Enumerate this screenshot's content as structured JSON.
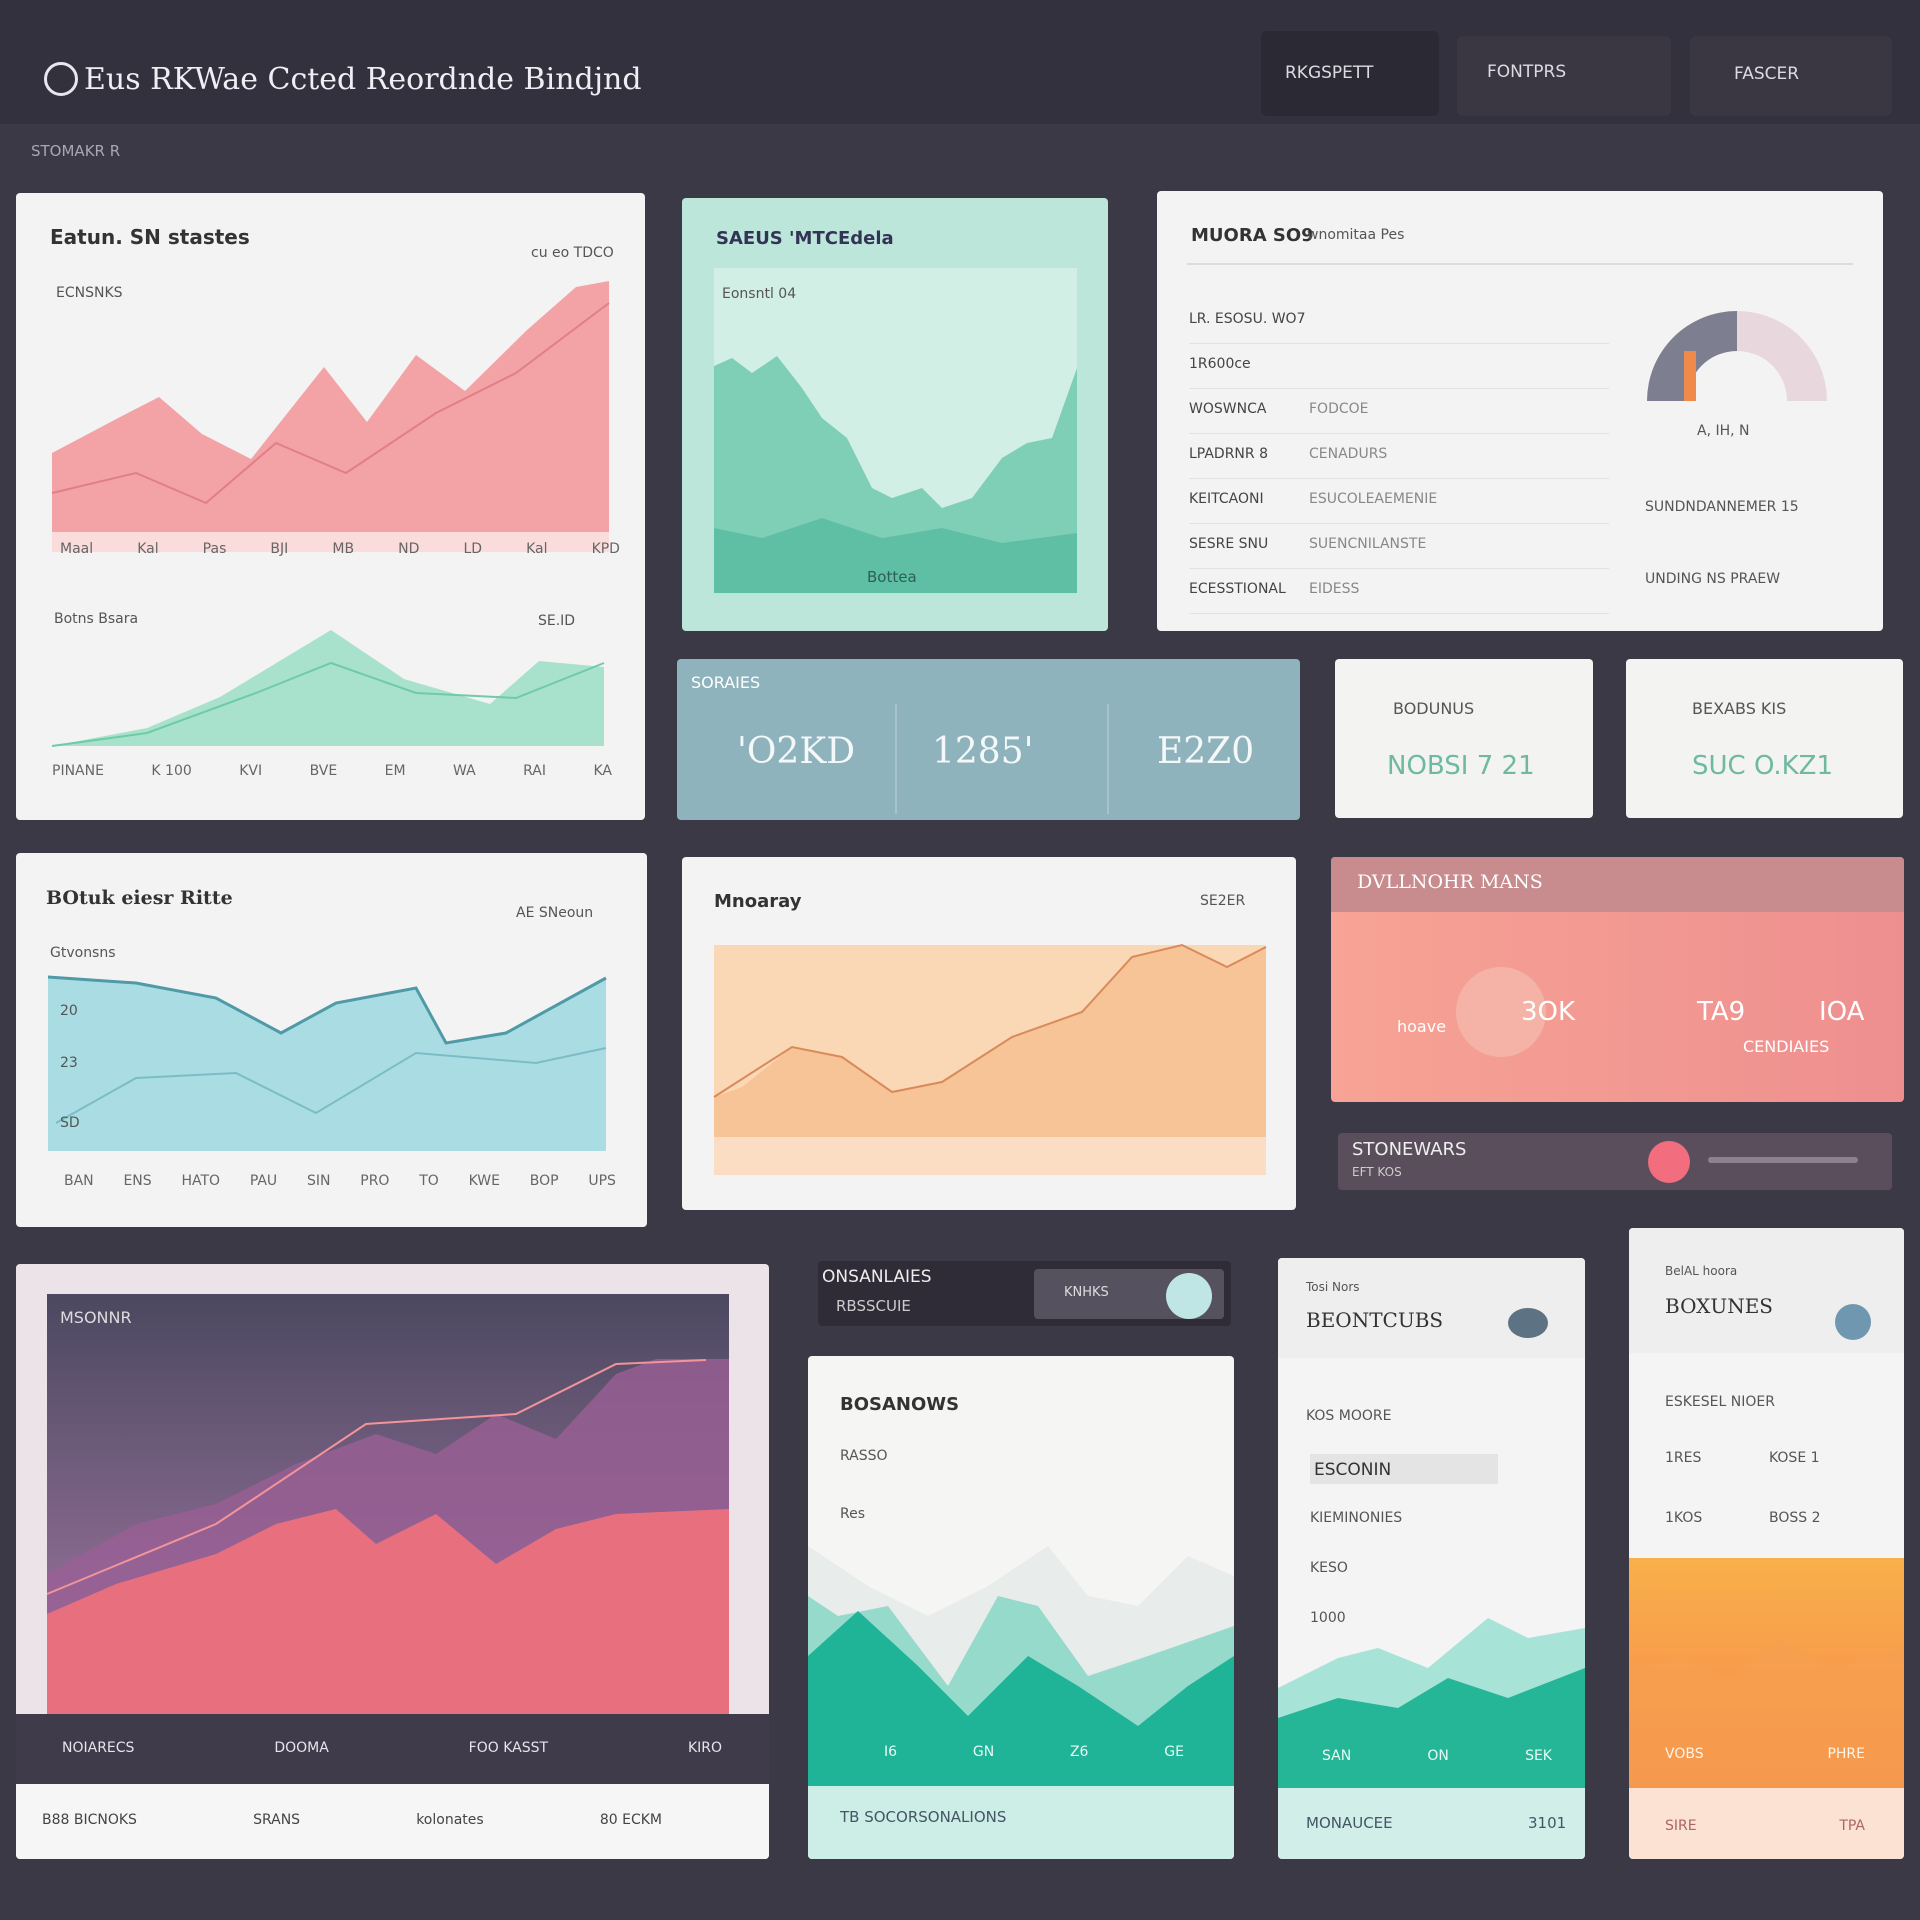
{
  "header": {
    "title": "Eus RKWae Ccted Reordnde Bindjnd",
    "breadcrumb": "STOMAKR R",
    "nav": [
      "RKGSPETT",
      "FONTPRS",
      "FASCER"
    ]
  },
  "card_a": {
    "title": "Eatun. SN stastes",
    "label": "ECNSNKS",
    "corner": "cu eo TDCO",
    "x_labels": [
      "Maal",
      "Kal",
      "Pas",
      "BJI",
      "MB",
      "ND",
      "LD",
      "Kal",
      "KPD"
    ],
    "sub_title": "Botns Bsara",
    "sub_corner": "SE.ID",
    "bottom_labels": [
      "PINANE",
      "K 100",
      "KVI",
      "BVE",
      "EM",
      "WA",
      "RAI",
      "KA"
    ]
  },
  "card_b": {
    "title": "SAEUS 'MTCEdela",
    "label": "Eonsntl 04",
    "footer": "Bottea"
  },
  "card_c": {
    "title": "MUORA SO9",
    "subtitle": "wnomitaa Pes",
    "rows": [
      [
        "LR. ESOSU. WO7",
        ""
      ],
      [
        "1R600ce",
        ""
      ],
      [
        "WOSWNCA",
        "FODCOE"
      ],
      [
        "LPADRNR 8",
        "CENADURS"
      ],
      [
        "KEITCAONI",
        "ESUCOLEAEMENIE"
      ],
      [
        "SESRE SNU",
        "SUENCNILANSTE"
      ],
      [
        "ECESSTIONAL",
        "EIDESS"
      ]
    ],
    "gauge_caption": "A, IH, N",
    "gauge_note": "SUNDNDANNEMER 15",
    "link": "UNDING NS PRAEW"
  },
  "stats": {
    "title": "SORAIES",
    "values": [
      "'O2KD",
      "1285'",
      "E2Z0"
    ]
  },
  "card_s1": {
    "title": "BODUNUS",
    "value": "NOBSI 7 21"
  },
  "card_s2": {
    "title": "BEXABS KIS",
    "value": "SUC O.KZ1"
  },
  "card_d": {
    "title": "BOtuk eiesr Ritte",
    "label": "Gtvonsns",
    "corner": "AE SNeoun",
    "y_labels": [
      "20",
      "23",
      "SD"
    ],
    "x_labels": [
      "BAN",
      "ENS",
      "HATO",
      "PAU",
      "SIN",
      "PRO",
      "TO",
      "KWE",
      "BOP",
      "UPS"
    ]
  },
  "card_e": {
    "title": "Mnoaray",
    "corner": "SE2ER"
  },
  "card_f": {
    "title": "DVLLNOHR MANS",
    "small": "hoave",
    "values": [
      "3OK",
      "TA9",
      "IOA"
    ],
    "caption": "CENDIAIES"
  },
  "bar_g": {
    "title": "STONEWARS",
    "subtitle": "EFT KOS"
  },
  "card_h": {
    "title": "MSONNR",
    "footer_dark": [
      "NOIARECS",
      "DOOMA",
      "FOO KASST",
      "KIRO"
    ],
    "footer_light": [
      "B88 BICNOKS",
      "SRANS",
      "kolonates",
      "80 ECKM"
    ]
  },
  "strip": {
    "title": "ONSANLAIES",
    "value": "RBSSCUIE",
    "chip": "KNHKS"
  },
  "card_i": {
    "title": "BOSANOWS",
    "labels": [
      "RASSO",
      "Res"
    ],
    "x_labels": [
      "I6",
      "GN",
      "Z6",
      "GE"
    ],
    "footer": "TB SOCORSONALIONS"
  },
  "card_j": {
    "overline": "Tosi Nors",
    "title": "BEONTCUBS",
    "labels": [
      "KOS MOORE",
      "ESCONIN",
      "KIEMINONIES",
      "KESO",
      "1000"
    ],
    "x_labels": [
      "SAN",
      "ON",
      "SEK"
    ],
    "footer": "MONAUCEE",
    "footer_value": "3101"
  },
  "card_k": {
    "overline": "BelAL hoora",
    "title": "BOXUNES",
    "subtitle": "ESKESEL NIOER",
    "rows": [
      [
        "1RES",
        "KOSE 1"
      ],
      [
        "1KOS",
        "BOSS 2"
      ]
    ],
    "x_labels": [
      "VOBS",
      "PHRE"
    ],
    "footer": [
      "SIRE",
      "TPA"
    ]
  }
}
